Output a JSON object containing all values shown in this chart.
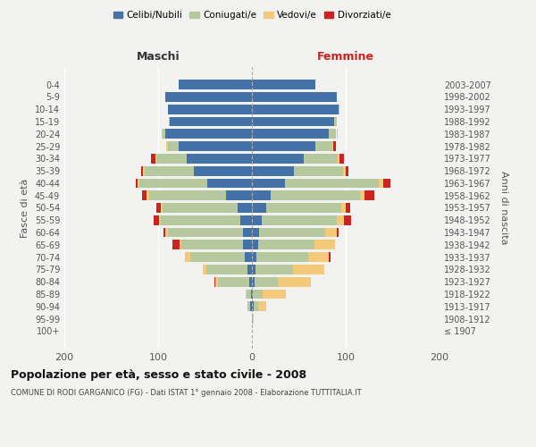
{
  "age_groups": [
    "100+",
    "95-99",
    "90-94",
    "85-89",
    "80-84",
    "75-79",
    "70-74",
    "65-69",
    "60-64",
    "55-59",
    "50-54",
    "45-49",
    "40-44",
    "35-39",
    "30-34",
    "25-29",
    "20-24",
    "15-19",
    "10-14",
    "5-9",
    "0-4"
  ],
  "birth_years": [
    "≤ 1907",
    "1908-1912",
    "1913-1917",
    "1918-1922",
    "1923-1927",
    "1928-1932",
    "1933-1937",
    "1938-1942",
    "1943-1947",
    "1948-1952",
    "1953-1957",
    "1958-1962",
    "1963-1967",
    "1968-1972",
    "1973-1977",
    "1978-1982",
    "1983-1987",
    "1988-1992",
    "1993-1997",
    "1998-2002",
    "2003-2007"
  ],
  "males_celibi": [
    0,
    0,
    2,
    1,
    3,
    5,
    8,
    10,
    10,
    12,
    15,
    28,
    48,
    62,
    70,
    78,
    92,
    88,
    90,
    92,
    78
  ],
  "males_coniugati": [
    0,
    0,
    3,
    5,
    33,
    44,
    58,
    65,
    80,
    85,
    80,
    82,
    72,
    52,
    32,
    12,
    3,
    1,
    0,
    0,
    0
  ],
  "males_vedovi": [
    0,
    0,
    0,
    1,
    3,
    3,
    5,
    2,
    2,
    2,
    2,
    2,
    2,
    2,
    1,
    1,
    1,
    0,
    0,
    0,
    0
  ],
  "males_divorziati": [
    0,
    0,
    0,
    0,
    1,
    0,
    0,
    8,
    2,
    6,
    5,
    5,
    2,
    2,
    5,
    0,
    0,
    0,
    0,
    0,
    0
  ],
  "females_nubili": [
    0,
    0,
    2,
    1,
    3,
    4,
    5,
    7,
    8,
    10,
    15,
    20,
    35,
    45,
    55,
    68,
    82,
    88,
    92,
    90,
    68
  ],
  "females_coniugate": [
    0,
    1,
    5,
    10,
    25,
    40,
    55,
    60,
    70,
    80,
    80,
    95,
    100,
    52,
    36,
    18,
    8,
    2,
    1,
    0,
    0
  ],
  "females_vedove": [
    0,
    1,
    8,
    25,
    35,
    33,
    22,
    22,
    12,
    8,
    5,
    5,
    5,
    3,
    2,
    1,
    1,
    0,
    0,
    0,
    0
  ],
  "females_divorziate": [
    0,
    0,
    0,
    0,
    0,
    0,
    2,
    0,
    2,
    8,
    5,
    10,
    8,
    3,
    5,
    3,
    0,
    0,
    0,
    0,
    0
  ],
  "color_celibi": "#4472a8",
  "color_coniugati": "#b5c89e",
  "color_vedovi": "#f5c97a",
  "color_divorziati": "#cc2222",
  "xlim_min": -200,
  "xlim_max": 200,
  "xticks": [
    -200,
    -100,
    0,
    100,
    200
  ],
  "xticklabels": [
    "200",
    "100",
    "0",
    "100",
    "200"
  ],
  "title": "Popolazione per età, sesso e stato civile - 2008",
  "subtitle": "COMUNE DI RODI GARGANICO (FG) - Dati ISTAT 1° gennaio 2008 - Elaborazione TUTTITALIA.IT",
  "ylabel_left": "Fasce di età",
  "ylabel_right": "Anni di nascita",
  "legend_labels": [
    "Celibi/Nubili",
    "Coniugati/e",
    "Vedovi/e",
    "Divorziati/e"
  ],
  "maschi_label": "Maschi",
  "femmine_label": "Femmine",
  "bg_color": "#f2f2f0",
  "bar_height": 0.78
}
